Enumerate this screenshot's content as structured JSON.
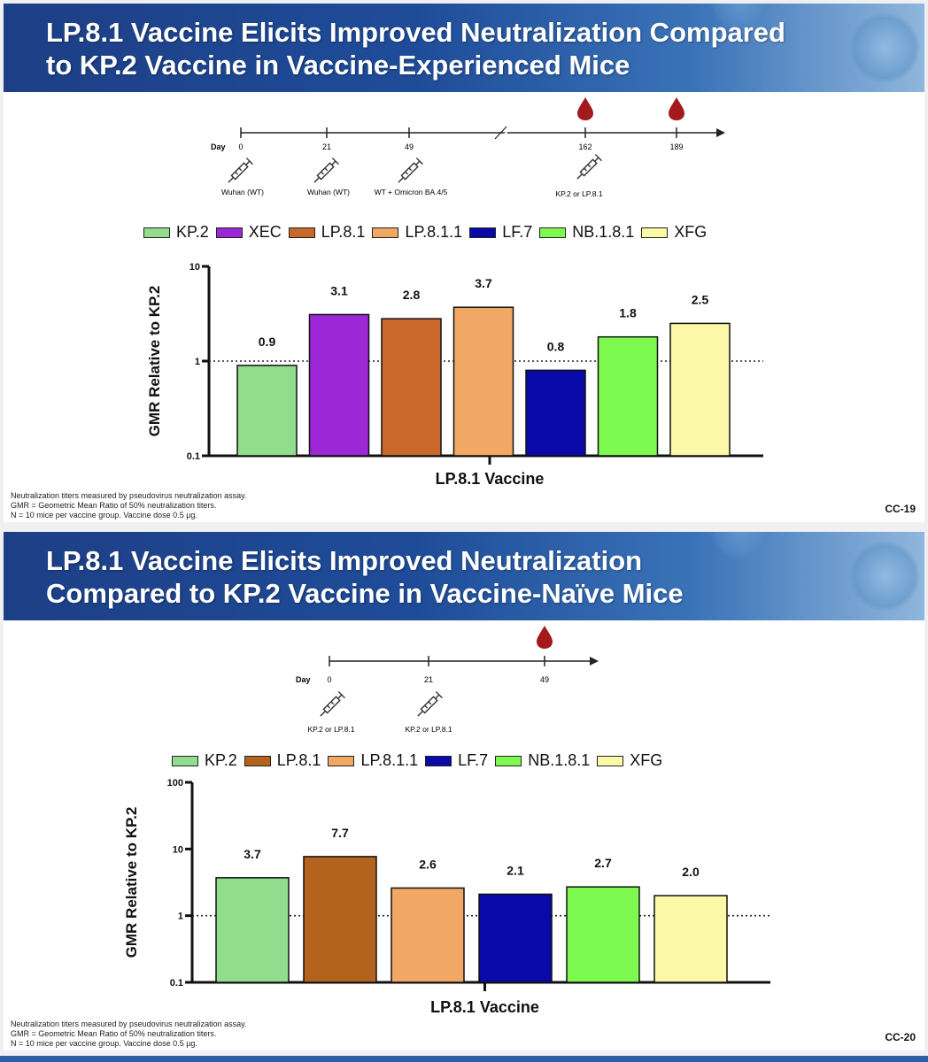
{
  "slides": [
    {
      "title_line1": "LP.8.1 Vaccine Elicits Improved Neutralization Compared",
      "title_line2": "to KP.2 Vaccine in Vaccine-Experienced Mice",
      "timeline": {
        "day_label": "Day",
        "days": [
          "0",
          "21",
          "49",
          "162",
          "189"
        ],
        "doses": [
          "Wuhan (WT)",
          "Wuhan (WT)",
          "WT + Omicron BA.4/5",
          "KP.2 or LP.8.1"
        ],
        "blood_draw_days": [
          "162",
          "189"
        ]
      },
      "footnotes": [
        "Neutralization titers measured by pseudovirus neutralization assay.",
        "GMR = Geometric Mean Ratio of 50% neutralization titers.",
        "N = 10 mice per vaccine group. Vaccine dose 0.5 µg."
      ],
      "slide_number": "CC-19"
    },
    {
      "title_line1": "LP.8.1 Vaccine Elicits Improved Neutralization",
      "title_line2": "Compared to KP.2 Vaccine in Vaccine-Naïve Mice",
      "timeline": {
        "day_label": "Day",
        "days": [
          "0",
          "21",
          "49"
        ],
        "doses": [
          "KP.2 or LP.8.1",
          "KP.2 or LP.8.1"
        ],
        "blood_draw_days": [
          "49"
        ]
      },
      "footnotes": [
        "Neutralization titers measured by pseudovirus neutralization assay.",
        "GMR = Geometric Mean Ratio of 50% neutralization titers.",
        "N = 10 mice per vaccine group. Vaccine dose 0.5 µg."
      ],
      "slide_number": "CC-20"
    }
  ],
  "chart_data": [
    {
      "type": "bar",
      "ylabel": "GMR Relative to KP.2",
      "xlabel": "LP.8.1 Vaccine",
      "yscale": "log",
      "ylim": [
        0.1,
        10
      ],
      "yticks": [
        "0.1",
        "1",
        "10"
      ],
      "reference_line": 1,
      "categories": [
        "KP.2",
        "XEC",
        "LP.8.1",
        "LP.8.1.1",
        "LF.7",
        "NB.1.8.1",
        "XFG"
      ],
      "values": [
        0.9,
        3.1,
        2.8,
        3.7,
        0.8,
        1.8,
        2.5
      ],
      "data_labels": [
        "0.9",
        "3.1",
        "2.8",
        "3.7",
        "0.8",
        "1.8",
        "2.5"
      ],
      "colors": [
        "#92dc8e",
        "#9b27d6",
        "#c8692b",
        "#f0a864",
        "#0a0aa8",
        "#7ef94f",
        "#fbf8a8"
      ],
      "legend_position": "top"
    },
    {
      "type": "bar",
      "ylabel": "GMR Relative to KP.2",
      "xlabel": "LP.8.1 Vaccine",
      "yscale": "log",
      "ylim": [
        0.1,
        100
      ],
      "yticks": [
        "0.1",
        "1",
        "10",
        "100"
      ],
      "reference_line": 1,
      "categories": [
        "KP.2",
        "LP.8.1",
        "LP.8.1.1",
        "LF.7",
        "NB.1.8.1",
        "XFG"
      ],
      "values": [
        3.7,
        7.7,
        2.6,
        2.1,
        2.7,
        2.0
      ],
      "data_labels": [
        "3.7",
        "7.7",
        "2.6",
        "2.1",
        "2.7",
        "2.0"
      ],
      "colors": [
        "#92dc8e",
        "#b4631f",
        "#f0a864",
        "#0a0aa8",
        "#7ef94f",
        "#fbf8a8"
      ],
      "legend_position": "top"
    }
  ]
}
